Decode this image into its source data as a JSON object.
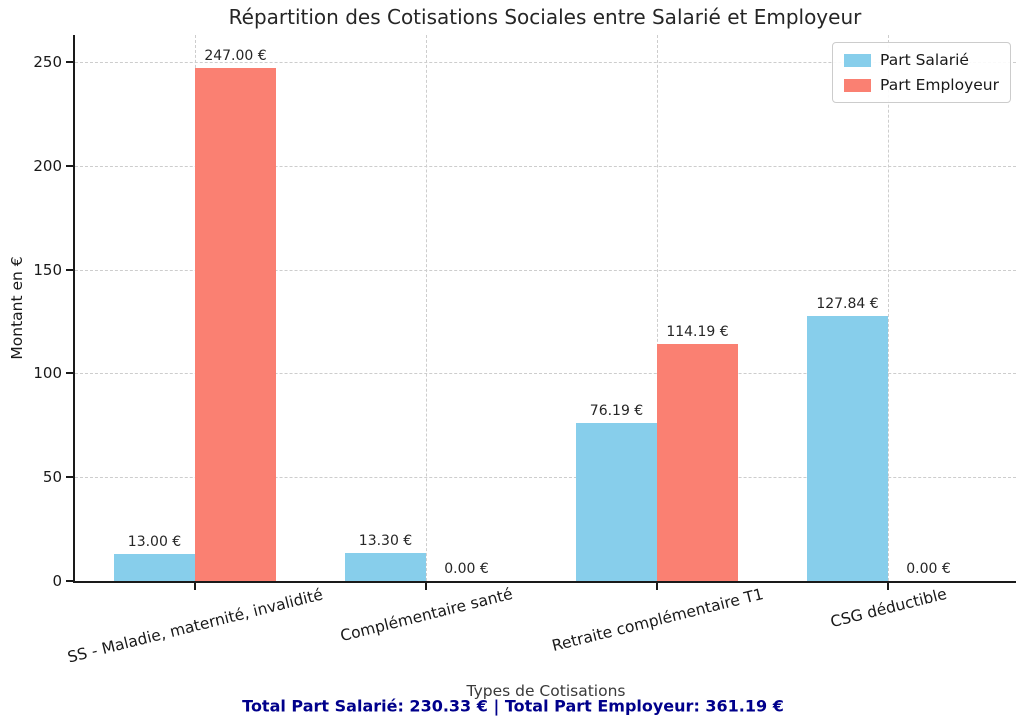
{
  "chart_data": {
    "type": "bar",
    "title": "Répartition des Cotisations Sociales entre Salarié et Employeur",
    "xlabel": "Types de Cotisations",
    "ylabel": "Montant en €",
    "categories": [
      "SS - Maladie, maternité, invalidité",
      "Complémentaire santé",
      "Retraite complémentaire T1",
      "CSG déductible"
    ],
    "series": [
      {
        "name": "Part Salarié",
        "color": "#87CEEB",
        "values": [
          13.0,
          13.3,
          76.19,
          127.84
        ],
        "value_labels": [
          "13.00 €",
          "13.30 €",
          "76.19 €",
          "127.84 €"
        ]
      },
      {
        "name": "Part Employeur",
        "color": "#FA8072",
        "values": [
          247.0,
          0.0,
          114.19,
          0.0
        ],
        "value_labels": [
          "247.00 €",
          "0.00 €",
          "114.19 €",
          "0.00 €"
        ]
      }
    ],
    "ylim": [
      0,
      263
    ],
    "yticks": [
      0,
      50,
      100,
      150,
      200,
      250
    ],
    "grid": true,
    "legend_position": "upper right",
    "annotation": {
      "text": "Total Part Salarié: 230.33 € | Total Part Employeur: 361.19 €",
      "color": "#00008B"
    }
  }
}
